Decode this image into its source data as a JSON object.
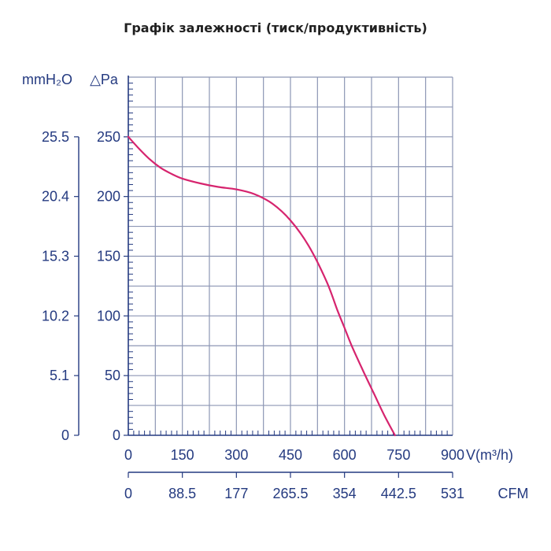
{
  "title": "Графік залежності (тиск/продуктивність)",
  "chart_data": {
    "type": "line",
    "title": "Графік залежності (тиск/продуктивність)",
    "xlabel": "V(m³/h)",
    "x2label": "CFM",
    "ylabel": "△Pa",
    "y2label": "mmH₂O",
    "xlim": [
      0,
      900
    ],
    "ylim": [
      0,
      300
    ],
    "x_ticks": [
      0,
      150,
      300,
      450,
      600,
      750,
      900
    ],
    "x2_ticks": [
      "0",
      "88.5",
      "177",
      "265.5",
      "354",
      "442.5",
      "531"
    ],
    "y_ticks": [
      0,
      50,
      100,
      150,
      200,
      250
    ],
    "y2_ticks": [
      "0",
      "5.1",
      "10.2",
      "15.3",
      "20.4",
      "25.5"
    ],
    "grid": true,
    "line_color": "#d6246e",
    "axis_color": "#243a80",
    "grid_color": "#8d96b4",
    "series": [
      {
        "x": [
          0,
          30,
          60,
          90,
          120,
          150,
          200,
          250,
          300,
          350,
          400,
          450,
          500,
          550,
          580,
          600,
          620,
          650,
          680,
          710,
          740
        ],
        "y": [
          250,
          240,
          231,
          224,
          219,
          215,
          211,
          208,
          206,
          202,
          194,
          180,
          159,
          129,
          105,
          90,
          75,
          55,
          36,
          17,
          0
        ]
      }
    ]
  }
}
